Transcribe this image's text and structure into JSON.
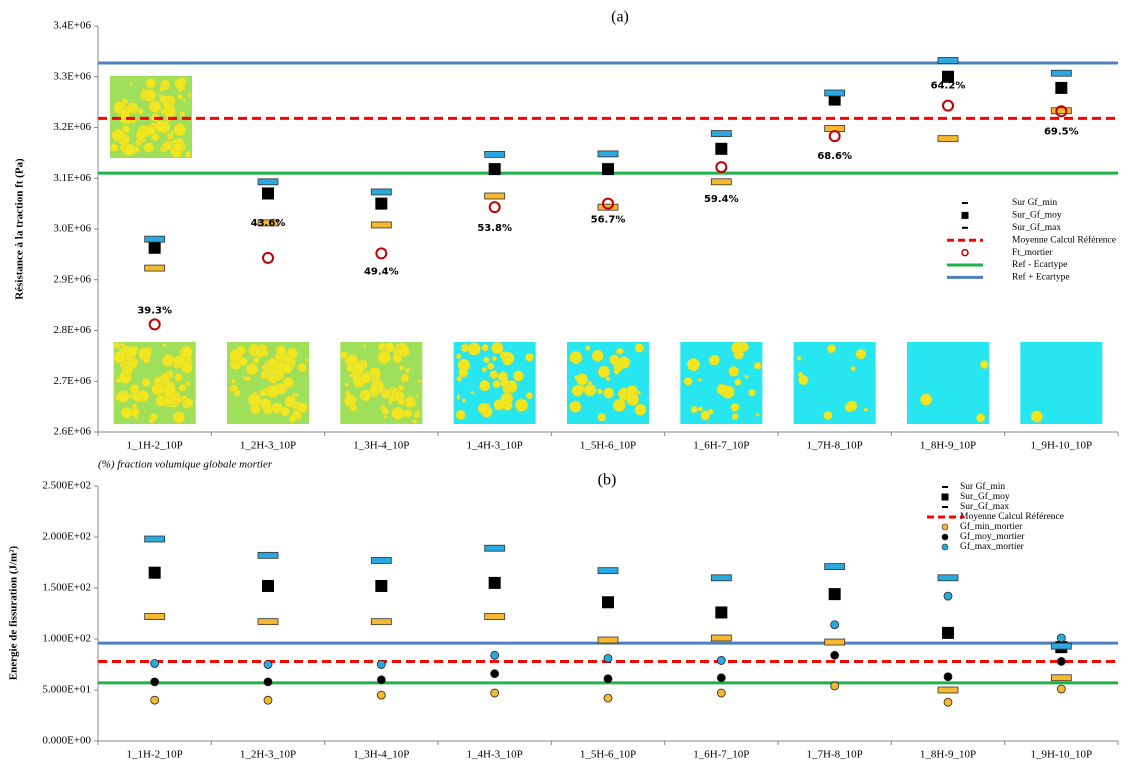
{
  "chart_data": [
    {
      "type": "dot",
      "title": "(a)",
      "y_label": "Résistance à la traction  ft (Pa)",
      "x_note": "(%) fraction volumique globale mortier",
      "categories": [
        "1_1H-2_10P",
        "1_2H-3_10P",
        "1_3H-4_10P",
        "1_4H-3_10P",
        "1_5H-6_10P",
        "1_6H-7_10P",
        "1_7H-8_10P",
        "1_8H-9_10P",
        "1_9H-10_10P"
      ],
      "ylim": [
        2600000,
        3400000
      ],
      "yticks": [
        {
          "value": 2600000,
          "label": "2.6E+06"
        },
        {
          "value": 2700000,
          "label": "2.7E+06"
        },
        {
          "value": 2800000,
          "label": "2.8E+06"
        },
        {
          "value": 2900000,
          "label": "2.9E+06"
        },
        {
          "value": 3000000,
          "label": "3.0E+06"
        },
        {
          "value": 3100000,
          "label": "3.1E+06"
        },
        {
          "value": 3200000,
          "label": "3.2E+06"
        },
        {
          "value": 3300000,
          "label": "3.3E+06"
        },
        {
          "value": 3400000,
          "label": "3.4E+06"
        }
      ],
      "series": [
        {
          "name": "Sur Gf_min",
          "marker": "dash",
          "color": "#f5b82e",
          "values": [
            2923000,
            3012000,
            3008000,
            3065000,
            3043000,
            3093000,
            3198000,
            3178000,
            3233000
          ]
        },
        {
          "name": "Sur_Gf_moy",
          "marker": "square",
          "color": "#000000",
          "values": [
            2963000,
            3070000,
            3050000,
            3118000,
            3118000,
            3158000,
            3255000,
            3300000,
            3278000
          ]
        },
        {
          "name": "Sur_Gf_max",
          "marker": "dash",
          "color": "#29a9e0",
          "values": [
            2980000,
            3093000,
            3073000,
            3147000,
            3148000,
            3188000,
            3268000,
            3332000,
            3307000
          ]
        },
        {
          "name": "Moyenne Calcul Référence",
          "marker": "hline",
          "dashed": true,
          "color": "#ff0000",
          "value": 3218000
        },
        {
          "name": "Ft_mortier",
          "marker": "open-circle",
          "color": "#c00000",
          "values": [
            2812000,
            2943000,
            2952000,
            3043000,
            3050000,
            3122000,
            3183000,
            3243000,
            3232000
          ],
          "annotations": [
            "39.3%",
            "43.6%",
            "49.4%",
            "53.8%",
            "56.7%",
            "59.4%",
            "68.6%",
            "64.2%",
            "69.5%"
          ]
        },
        {
          "name": "Ref - Ecartype",
          "marker": "hline",
          "color": "#1fb14a",
          "value": 3110000
        },
        {
          "name": "Ref + Ecartype",
          "marker": "hline",
          "color": "#4f7fc0",
          "value": 3327000
        }
      ]
    },
    {
      "type": "dot",
      "title": "(b)",
      "y_label": "Energie de fissuration (J/m²)",
      "categories": [
        "1_1H-2_10P",
        "1_2H-3_10P",
        "1_3H-4_10P",
        "1_4H-3_10P",
        "1_5H-6_10P",
        "1_6H-7_10P",
        "1_7H-8_10P",
        "1_8H-9_10P",
        "1_9H-10_10P"
      ],
      "ylim": [
        0,
        250
      ],
      "yticks": [
        {
          "value": 0,
          "label": "0.000E+00"
        },
        {
          "value": 50,
          "label": "5.000E+01"
        },
        {
          "value": 100,
          "label": "1.000E+02"
        },
        {
          "value": 150,
          "label": "1.500E+02"
        },
        {
          "value": 200,
          "label": "2.000E+02"
        },
        {
          "value": 250,
          "label": "2.500E+02"
        }
      ],
      "series": [
        {
          "name": "Sur Gf_min",
          "marker": "dash",
          "color": "#f5b82e",
          "values": [
            122,
            117,
            117,
            122,
            99,
            101,
            97,
            50,
            62
          ]
        },
        {
          "name": "Sur_Gf_moy",
          "marker": "square",
          "color": "#000000",
          "values": [
            165,
            152,
            152,
            155,
            136,
            126,
            144,
            106,
            92
          ]
        },
        {
          "name": "Sur_Gf_max",
          "marker": "dash",
          "color": "#29a9e0",
          "values": [
            198,
            182,
            177,
            189,
            167,
            160,
            171,
            160,
            93
          ]
        },
        {
          "name": "Moyenne Calcul Référence",
          "marker": "hline",
          "dashed": true,
          "color": "#ff0000",
          "value": 78
        },
        {
          "name": "Gf_min_mortier",
          "marker": "circle",
          "color": "#f5b82e",
          "values": [
            40,
            40,
            45,
            47,
            42,
            47,
            54,
            38,
            51
          ]
        },
        {
          "name": "Gf_moy_mortier",
          "marker": "circle",
          "color": "#000000",
          "values": [
            58,
            58,
            60,
            66,
            61,
            62,
            84,
            63,
            78
          ]
        },
        {
          "name": "Gf_max_mortier",
          "marker": "circle",
          "color": "#29a9e0",
          "values": [
            76,
            75,
            75,
            84,
            81,
            79,
            114,
            142,
            101
          ]
        },
        {
          "marker": "hline",
          "color": "#4f7fc0",
          "value": 96
        },
        {
          "marker": "hline",
          "color": "#1fb14a",
          "value": 57
        }
      ]
    }
  ]
}
